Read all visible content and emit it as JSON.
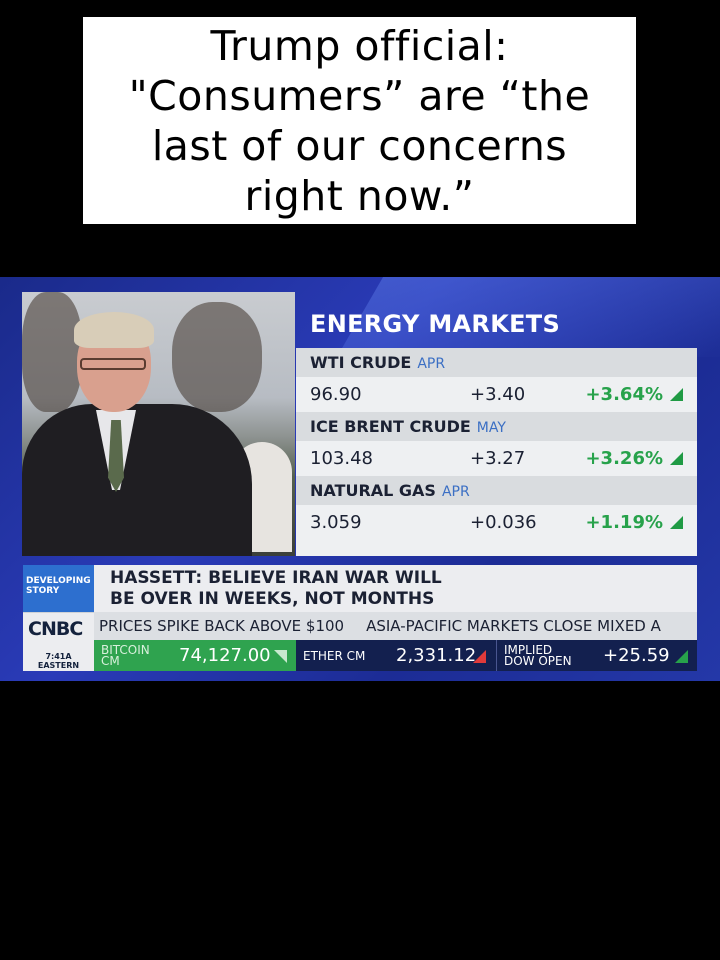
{
  "caption": "Trump official:\n\"Consumers” are “the\nlast of our concerns\nright now.”",
  "energy_markets": {
    "title": "ENERGY MARKETS",
    "rows": [
      {
        "name": "WTI CRUDE",
        "month": "APR",
        "price": "96.90",
        "change": "+3.40",
        "pct": "+3.64%"
      },
      {
        "name": "ICE BRENT CRUDE",
        "month": "MAY",
        "price": "103.48",
        "change": "+3.27",
        "pct": "+3.26%"
      },
      {
        "name": "NATURAL GAS",
        "month": "APR",
        "price": "3.059",
        "change": "+0.036",
        "pct": "+1.19%"
      }
    ]
  },
  "lower_third": {
    "tag": "DEVELOPING STORY",
    "headline": "HASSETT: BELIEVE IRAN WAR WILL\nBE OVER IN WEEKS, NOT MONTHS",
    "logo": "CNBC",
    "time": "7:41A",
    "timezone": "EASTERN",
    "crawl": [
      "PRICES SPIKE BACK ABOVE $100",
      "ASIA-PACIFIC MARKETS CLOSE MIXED A"
    ],
    "ticker": [
      {
        "label": "BITCOIN CM",
        "value": "74,127.00",
        "direction": "down"
      },
      {
        "label": "ETHER CM",
        "value": "2,331.12",
        "direction": "down"
      },
      {
        "label": "IMPLIED DOW OPEN",
        "value": "+25.59",
        "direction": "up"
      }
    ]
  },
  "colors": {
    "up": "#27a24b",
    "down": "#e03a3a",
    "bitcoin_bg": "#2fa34f",
    "brand_blue": "#2d6fcf"
  }
}
